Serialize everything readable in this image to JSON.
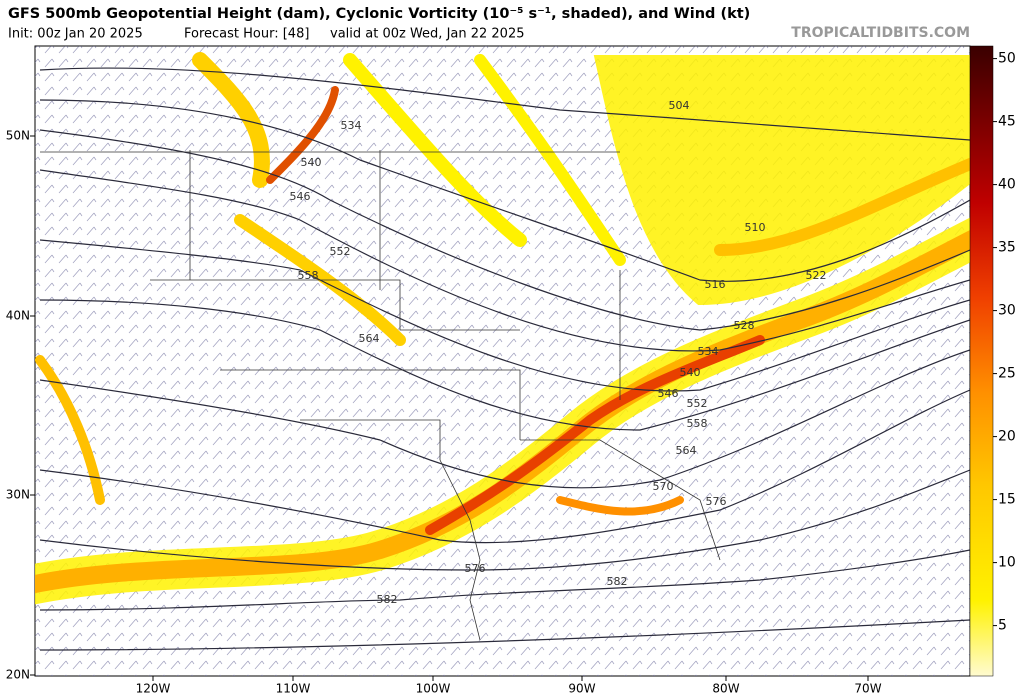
{
  "header": {
    "title": "GFS 500mb Geopotential Height (dam), Cyclonic Vorticity (10⁻⁵ s⁻¹, shaded), and Wind (kt)",
    "init": "Init: 00z Jan 20 2025",
    "forecast": "Forecast Hour: [48]",
    "valid": "valid at 00z Wed, Jan 22 2025",
    "watermark": "TROPICALTIDBITS.COM"
  },
  "map": {
    "lat_labels": [
      "50N",
      "40N",
      "30N",
      "20N"
    ],
    "lon_labels": [
      "120W",
      "110W",
      "100W",
      "90W",
      "80W",
      "70W"
    ],
    "contour_labels": [
      "504",
      "534",
      "540",
      "546",
      "552",
      "558",
      "564",
      "510",
      "516",
      "522",
      "528",
      "534",
      "540",
      "546",
      "552",
      "558",
      "564",
      "570",
      "576",
      "576",
      "582",
      "582"
    ]
  },
  "colorbar": {
    "range": [
      1,
      51
    ],
    "ticks": [
      5,
      10,
      15,
      20,
      25,
      30,
      35,
      40,
      45,
      50
    ]
  }
}
